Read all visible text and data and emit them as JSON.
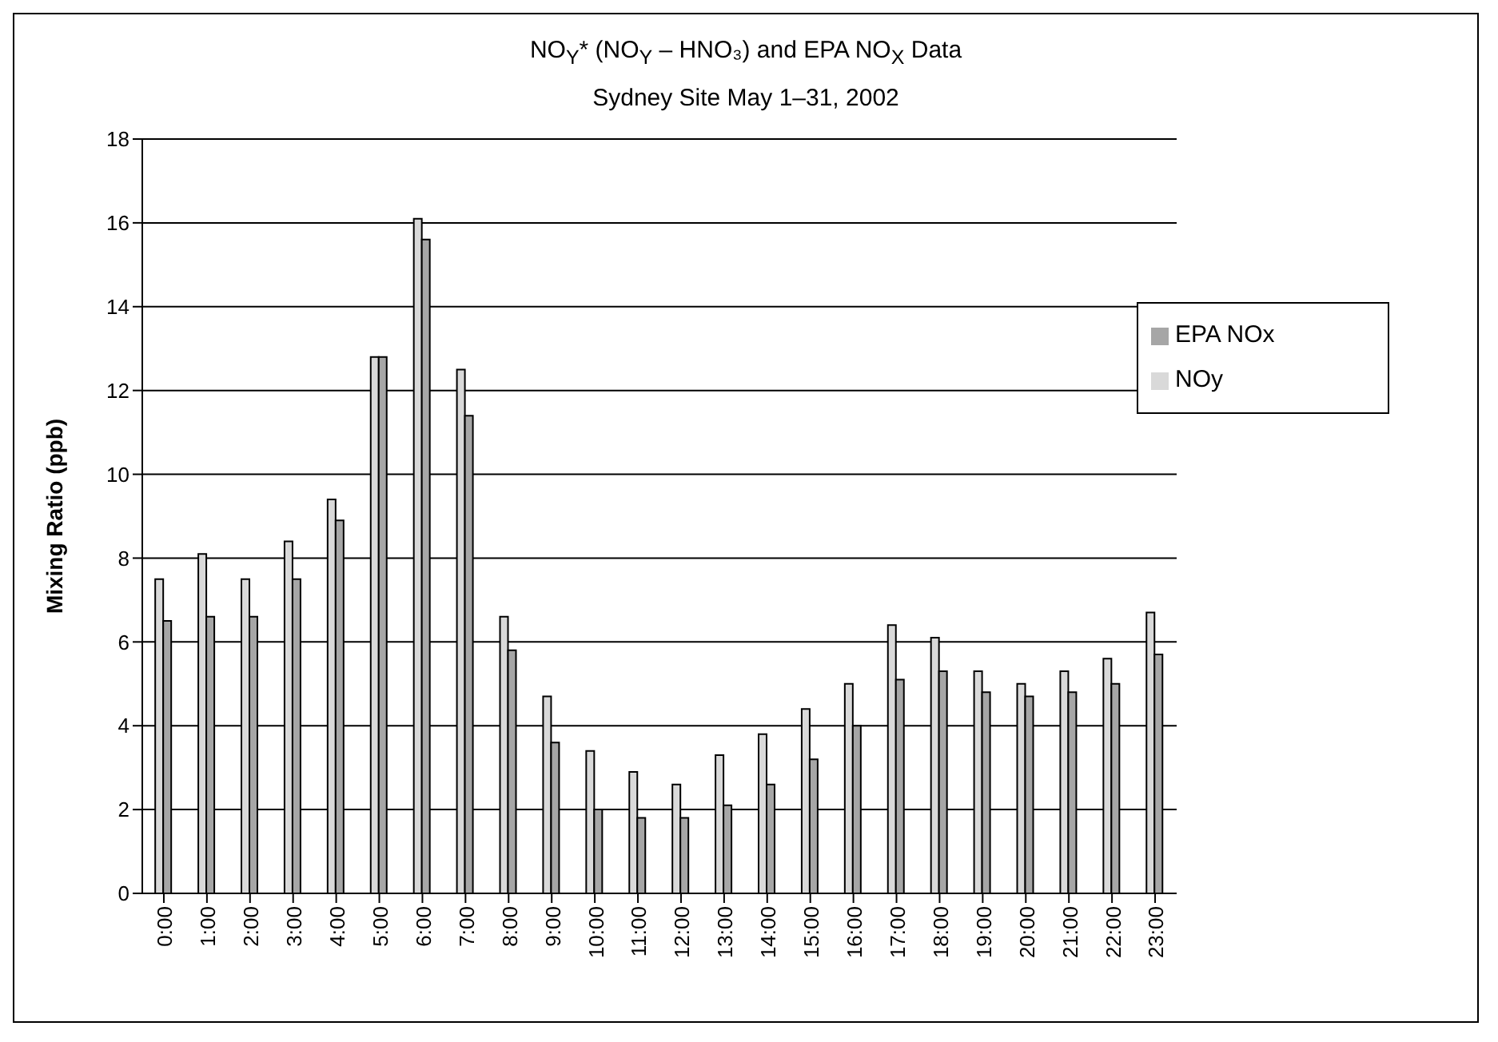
{
  "chart_data": {
    "type": "bar",
    "title": "NO$_{Y}$* (NO$_{Y}$ – HNO₃) and EPA NO$_{X}$ Data",
    "subtitle": "Sydney Site May 1–31, 2002",
    "ylabel": "Mixing Ratio (ppb)",
    "categories": [
      "0:00",
      "1:00",
      "2:00",
      "3:00",
      "4:00",
      "5:00",
      "6:00",
      "7:00",
      "8:00",
      "9:00",
      "10:00",
      "11:00",
      "12:00",
      "13:00",
      "14:00",
      "15:00",
      "16:00",
      "17:00",
      "18:00",
      "19:00",
      "20:00",
      "21:00",
      "22:00",
      "23:00"
    ],
    "series": [
      {
        "name": "NOy",
        "color": "#d9d9d9",
        "values": [
          7.5,
          8.1,
          7.5,
          8.4,
          9.4,
          12.8,
          16.1,
          12.5,
          6.6,
          4.7,
          3.4,
          2.9,
          2.6,
          3.3,
          3.8,
          4.4,
          5.0,
          6.4,
          6.1,
          5.3,
          5.0,
          5.3,
          5.6,
          6.7
        ]
      },
      {
        "name": "EPA NOx",
        "color": "#a6a6a6",
        "values": [
          6.5,
          6.6,
          6.6,
          7.5,
          8.9,
          12.8,
          15.6,
          11.4,
          5.8,
          3.6,
          2.0,
          1.8,
          1.8,
          2.1,
          2.6,
          3.2,
          4.0,
          5.1,
          5.3,
          4.8,
          4.7,
          4.8,
          5.0,
          5.7
        ]
      }
    ],
    "ylim": [
      0,
      18
    ],
    "yticks": [
      0,
      2,
      4,
      6,
      8,
      10,
      12,
      14,
      16,
      18
    ],
    "grid": "y",
    "legend": "top right"
  }
}
